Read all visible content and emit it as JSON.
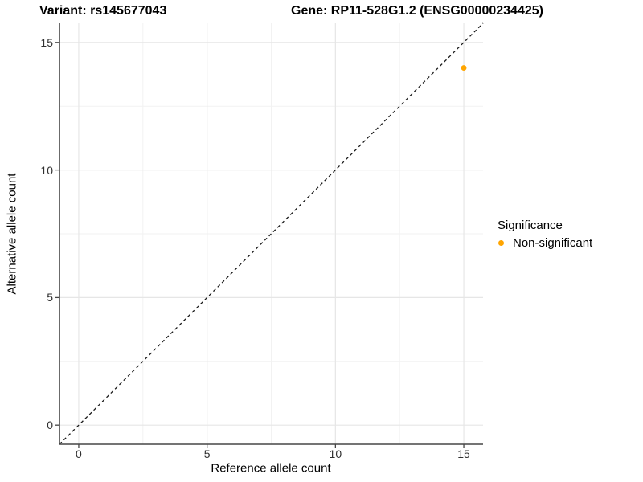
{
  "title": {
    "variant": "Variant: rs145677043",
    "gene": "Gene: RP11-528G1.2 (ENSG00000234425)"
  },
  "axes": {
    "x": {
      "label": "Reference allele count"
    },
    "y": {
      "label": "Alternative allele count"
    }
  },
  "legend": {
    "title": "Significance",
    "items": [
      {
        "label": "Non-significant",
        "color": "#FFA500"
      }
    ]
  },
  "colors": {
    "background": "#ffffff",
    "axis_line": "#464646",
    "tick_mark": "#464646",
    "tick_text": "#303030",
    "grid_major": "#e6e6e6",
    "grid_minor": "#f2f2f2",
    "reference_line": "#1a1a1a",
    "point": "#FFA500"
  },
  "chart_data": {
    "type": "scatter",
    "title": "Variant: rs145677043   Gene: RP11-528G1.2 (ENSG00000234425)",
    "xlabel": "Reference allele count",
    "ylabel": "Alternative allele count",
    "xlim": [
      0,
      15
    ],
    "ylim": [
      0,
      15
    ],
    "x_ticks": [
      0,
      5,
      10,
      15
    ],
    "y_ticks": [
      0,
      5,
      10,
      15
    ],
    "x_tick_labels": [
      "0",
      "5",
      "10",
      "15"
    ],
    "y_tick_labels": [
      "0",
      "5",
      "10",
      "15"
    ],
    "x_minor": [
      2.5,
      7.5,
      12.5
    ],
    "y_minor": [
      2.5,
      7.5,
      12.5
    ],
    "grid": true,
    "legend_position": "right",
    "series": [
      {
        "name": "Non-significant",
        "color": "#FFA500",
        "points": [
          {
            "x": 15,
            "y": 14
          }
        ]
      }
    ],
    "reference_line": {
      "type": "abline",
      "slope": 1,
      "intercept": 0,
      "style": "dashed",
      "color": "#1a1a1a"
    }
  }
}
